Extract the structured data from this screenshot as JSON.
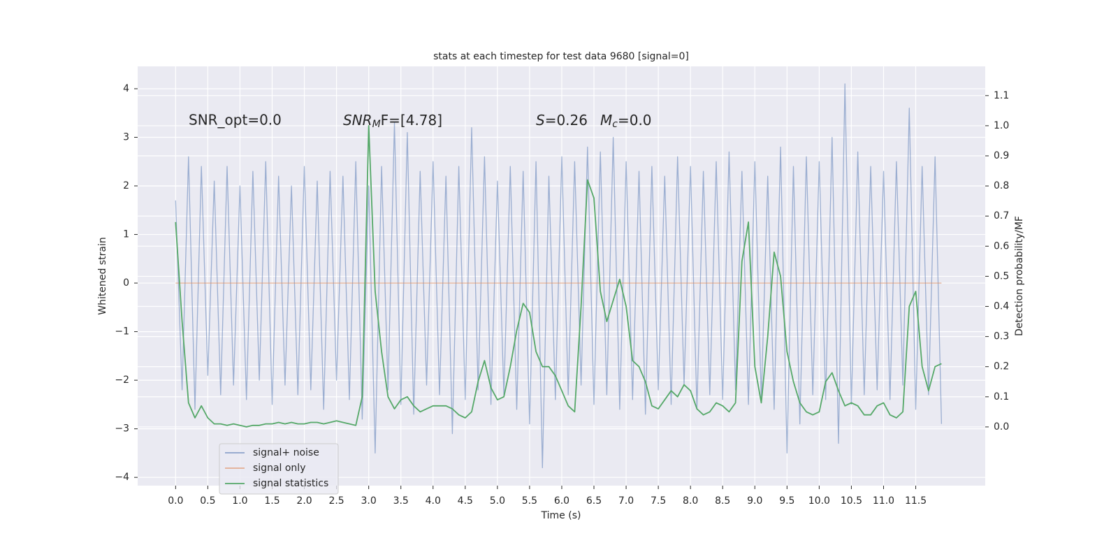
{
  "chart_data": {
    "type": "line",
    "title": "stats at each timestep for test data 9680 [signal=0]",
    "xlabel": "Time (s)",
    "ylabel": "Whitened strain",
    "y2label": "Detection probability/MF",
    "annotations": [
      {
        "text": "SNR_opt=0.0"
      },
      {
        "base": "SNR",
        "sub": "M",
        "rest": "F=[4.78]"
      },
      {
        "base": "S",
        "rest": "=0.26"
      },
      {
        "base": "M",
        "sub": "c",
        "rest": "=0.0"
      }
    ],
    "grid": true,
    "legend": "lower left",
    "xlim": [
      -0.59,
      12.58
    ],
    "ylim": [
      -4.17,
      4.46
    ],
    "y2lim": [
      -0.195,
      1.197
    ],
    "xticks": [
      {
        "value": 0,
        "label": "0.0"
      },
      0.5,
      {
        "value": 1,
        "label": "1.0"
      },
      1.5,
      {
        "value": 2,
        "label": "2.0"
      },
      2.5,
      {
        "value": 3,
        "label": "3.0"
      },
      3.5,
      {
        "value": 4,
        "label": "4.0"
      },
      4.5,
      {
        "value": 5,
        "label": "5.0"
      },
      5.5,
      {
        "value": 6,
        "label": "6.0"
      },
      6.5,
      {
        "value": 7,
        "label": "7.0"
      },
      7.5,
      {
        "value": 8,
        "label": "8.0"
      },
      8.5,
      {
        "value": 9,
        "label": "9.0"
      },
      9.5,
      {
        "value": 10,
        "label": "10.0"
      },
      10.5,
      {
        "value": 11,
        "label": "11.0"
      },
      11.5
    ],
    "yticks": [
      {
        "value": -4,
        "label": "−4"
      },
      {
        "value": -3,
        "label": "−3"
      },
      {
        "value": -2,
        "label": "−2"
      },
      {
        "value": -1,
        "label": "−1"
      },
      0,
      1,
      2,
      3,
      4
    ],
    "y2ticks": [
      {
        "value": 0,
        "label": "0.0"
      },
      0.1,
      0.2,
      0.3,
      0.4,
      0.5,
      0.6,
      0.7,
      0.8,
      0.9,
      {
        "value": 1,
        "label": "1.0"
      },
      1.1
    ],
    "x": [
      0,
      0.1,
      0.2,
      0.3,
      0.4,
      0.5,
      0.6,
      0.7,
      0.8,
      0.9,
      1,
      1.1,
      1.2,
      1.3,
      1.4,
      1.5,
      1.6,
      1.7,
      1.8,
      1.9,
      2,
      2.1,
      2.2,
      2.3,
      2.4,
      2.5,
      2.6,
      2.7,
      2.8,
      2.9,
      3,
      3.1,
      3.2,
      3.3,
      3.4,
      3.5,
      3.6,
      3.7,
      3.8,
      3.9,
      4,
      4.1,
      4.2,
      4.3,
      4.4,
      4.5,
      4.6,
      4.7,
      4.8,
      4.9,
      5,
      5.1,
      5.2,
      5.3,
      5.4,
      5.5,
      5.6,
      5.7,
      5.8,
      5.9,
      6,
      6.1,
      6.2,
      6.3,
      6.4,
      6.5,
      6.6,
      6.7,
      6.8,
      6.9,
      7,
      7.1,
      7.2,
      7.3,
      7.4,
      7.5,
      7.6,
      7.7,
      7.8,
      7.9,
      8,
      8.1,
      8.2,
      8.3,
      8.4,
      8.5,
      8.6,
      8.7,
      8.8,
      8.9,
      9,
      9.1,
      9.2,
      9.3,
      9.4,
      9.5,
      9.6,
      9.7,
      9.8,
      9.9,
      10,
      10.1,
      10.2,
      10.3,
      10.4,
      10.5,
      10.6,
      10.7,
      10.8,
      10.9,
      11,
      11.1,
      11.2,
      11.3,
      11.4,
      11.5,
      11.6,
      11.7,
      11.8,
      11.9
    ],
    "series": [
      {
        "name": "signal+ noise",
        "color": "#4c72b0",
        "values": [
          1.7,
          -2.2,
          2.6,
          -2.6,
          2.4,
          -1.9,
          2.1,
          -2.3,
          2.4,
          -2.1,
          2.0,
          -2.4,
          2.3,
          -2.0,
          2.5,
          -2.5,
          2.2,
          -2.1,
          2.0,
          -2.3,
          2.4,
          -2.2,
          2.1,
          -2.6,
          2.3,
          -2.0,
          2.2,
          -2.4,
          2.5,
          -2.8,
          2.0,
          -3.5,
          2.4,
          -2.2,
          3.3,
          -2.5,
          3.1,
          -2.7,
          2.3,
          -2.1,
          2.5,
          -2.3,
          2.2,
          -3.1,
          2.4,
          -2.4,
          3.2,
          -2.2,
          2.6,
          -2.5,
          2.1,
          -2.3,
          2.4,
          -2.6,
          2.3,
          -2.9,
          2.5,
          -3.8,
          2.2,
          -2.4,
          2.6,
          -2.3,
          2.5,
          -2.1,
          2.8,
          -2.5,
          2.7,
          -2.3,
          3.0,
          -2.6,
          2.5,
          -2.4,
          2.3,
          -2.7,
          2.4,
          -2.2,
          2.2,
          -2.5,
          2.6,
          -2.1,
          2.4,
          -2.6,
          2.3,
          -2.3,
          2.5,
          -2.4,
          2.7,
          -2.2,
          2.3,
          -2.5,
          2.5,
          -2.4,
          2.2,
          -2.6,
          2.8,
          -3.5,
          2.4,
          -2.9,
          2.6,
          -2.3,
          2.5,
          -2.4,
          3.0,
          -3.3,
          4.1,
          -2.5,
          2.7,
          -2.3,
          2.4,
          -2.2,
          2.3,
          -2.4,
          2.5,
          -2.1,
          3.6,
          -2.6,
          2.4,
          -2.3,
          2.6,
          -2.9
        ]
      },
      {
        "name": "signal only",
        "color": "#dd8452",
        "x": [
          0,
          11.9
        ],
        "values": [
          0,
          0
        ]
      },
      {
        "name": "signal statistics",
        "color": "#55a868",
        "axis": "y2",
        "values": [
          0.68,
          0.35,
          0.08,
          0.03,
          0.07,
          0.03,
          0.01,
          0.01,
          0.005,
          0.01,
          0.005,
          0.0,
          0.005,
          0.005,
          0.01,
          0.01,
          0.015,
          0.01,
          0.015,
          0.01,
          0.01,
          0.015,
          0.015,
          0.01,
          0.015,
          0.02,
          0.015,
          0.01,
          0.005,
          0.1,
          1.0,
          0.45,
          0.25,
          0.1,
          0.06,
          0.09,
          0.1,
          0.07,
          0.05,
          0.06,
          0.07,
          0.07,
          0.07,
          0.06,
          0.04,
          0.03,
          0.05,
          0.15,
          0.22,
          0.13,
          0.09,
          0.1,
          0.2,
          0.32,
          0.41,
          0.38,
          0.25,
          0.2,
          0.2,
          0.17,
          0.12,
          0.07,
          0.05,
          0.4,
          0.82,
          0.76,
          0.45,
          0.35,
          0.42,
          0.49,
          0.4,
          0.22,
          0.2,
          0.15,
          0.07,
          0.06,
          0.09,
          0.12,
          0.1,
          0.14,
          0.12,
          0.06,
          0.04,
          0.05,
          0.08,
          0.07,
          0.05,
          0.08,
          0.55,
          0.68,
          0.2,
          0.08,
          0.3,
          0.58,
          0.5,
          0.25,
          0.15,
          0.08,
          0.05,
          0.04,
          0.05,
          0.15,
          0.18,
          0.12,
          0.07,
          0.08,
          0.07,
          0.04,
          0.04,
          0.07,
          0.08,
          0.04,
          0.03,
          0.05,
          0.4,
          0.45,
          0.2,
          0.12,
          0.2,
          0.21
        ]
      }
    ]
  }
}
